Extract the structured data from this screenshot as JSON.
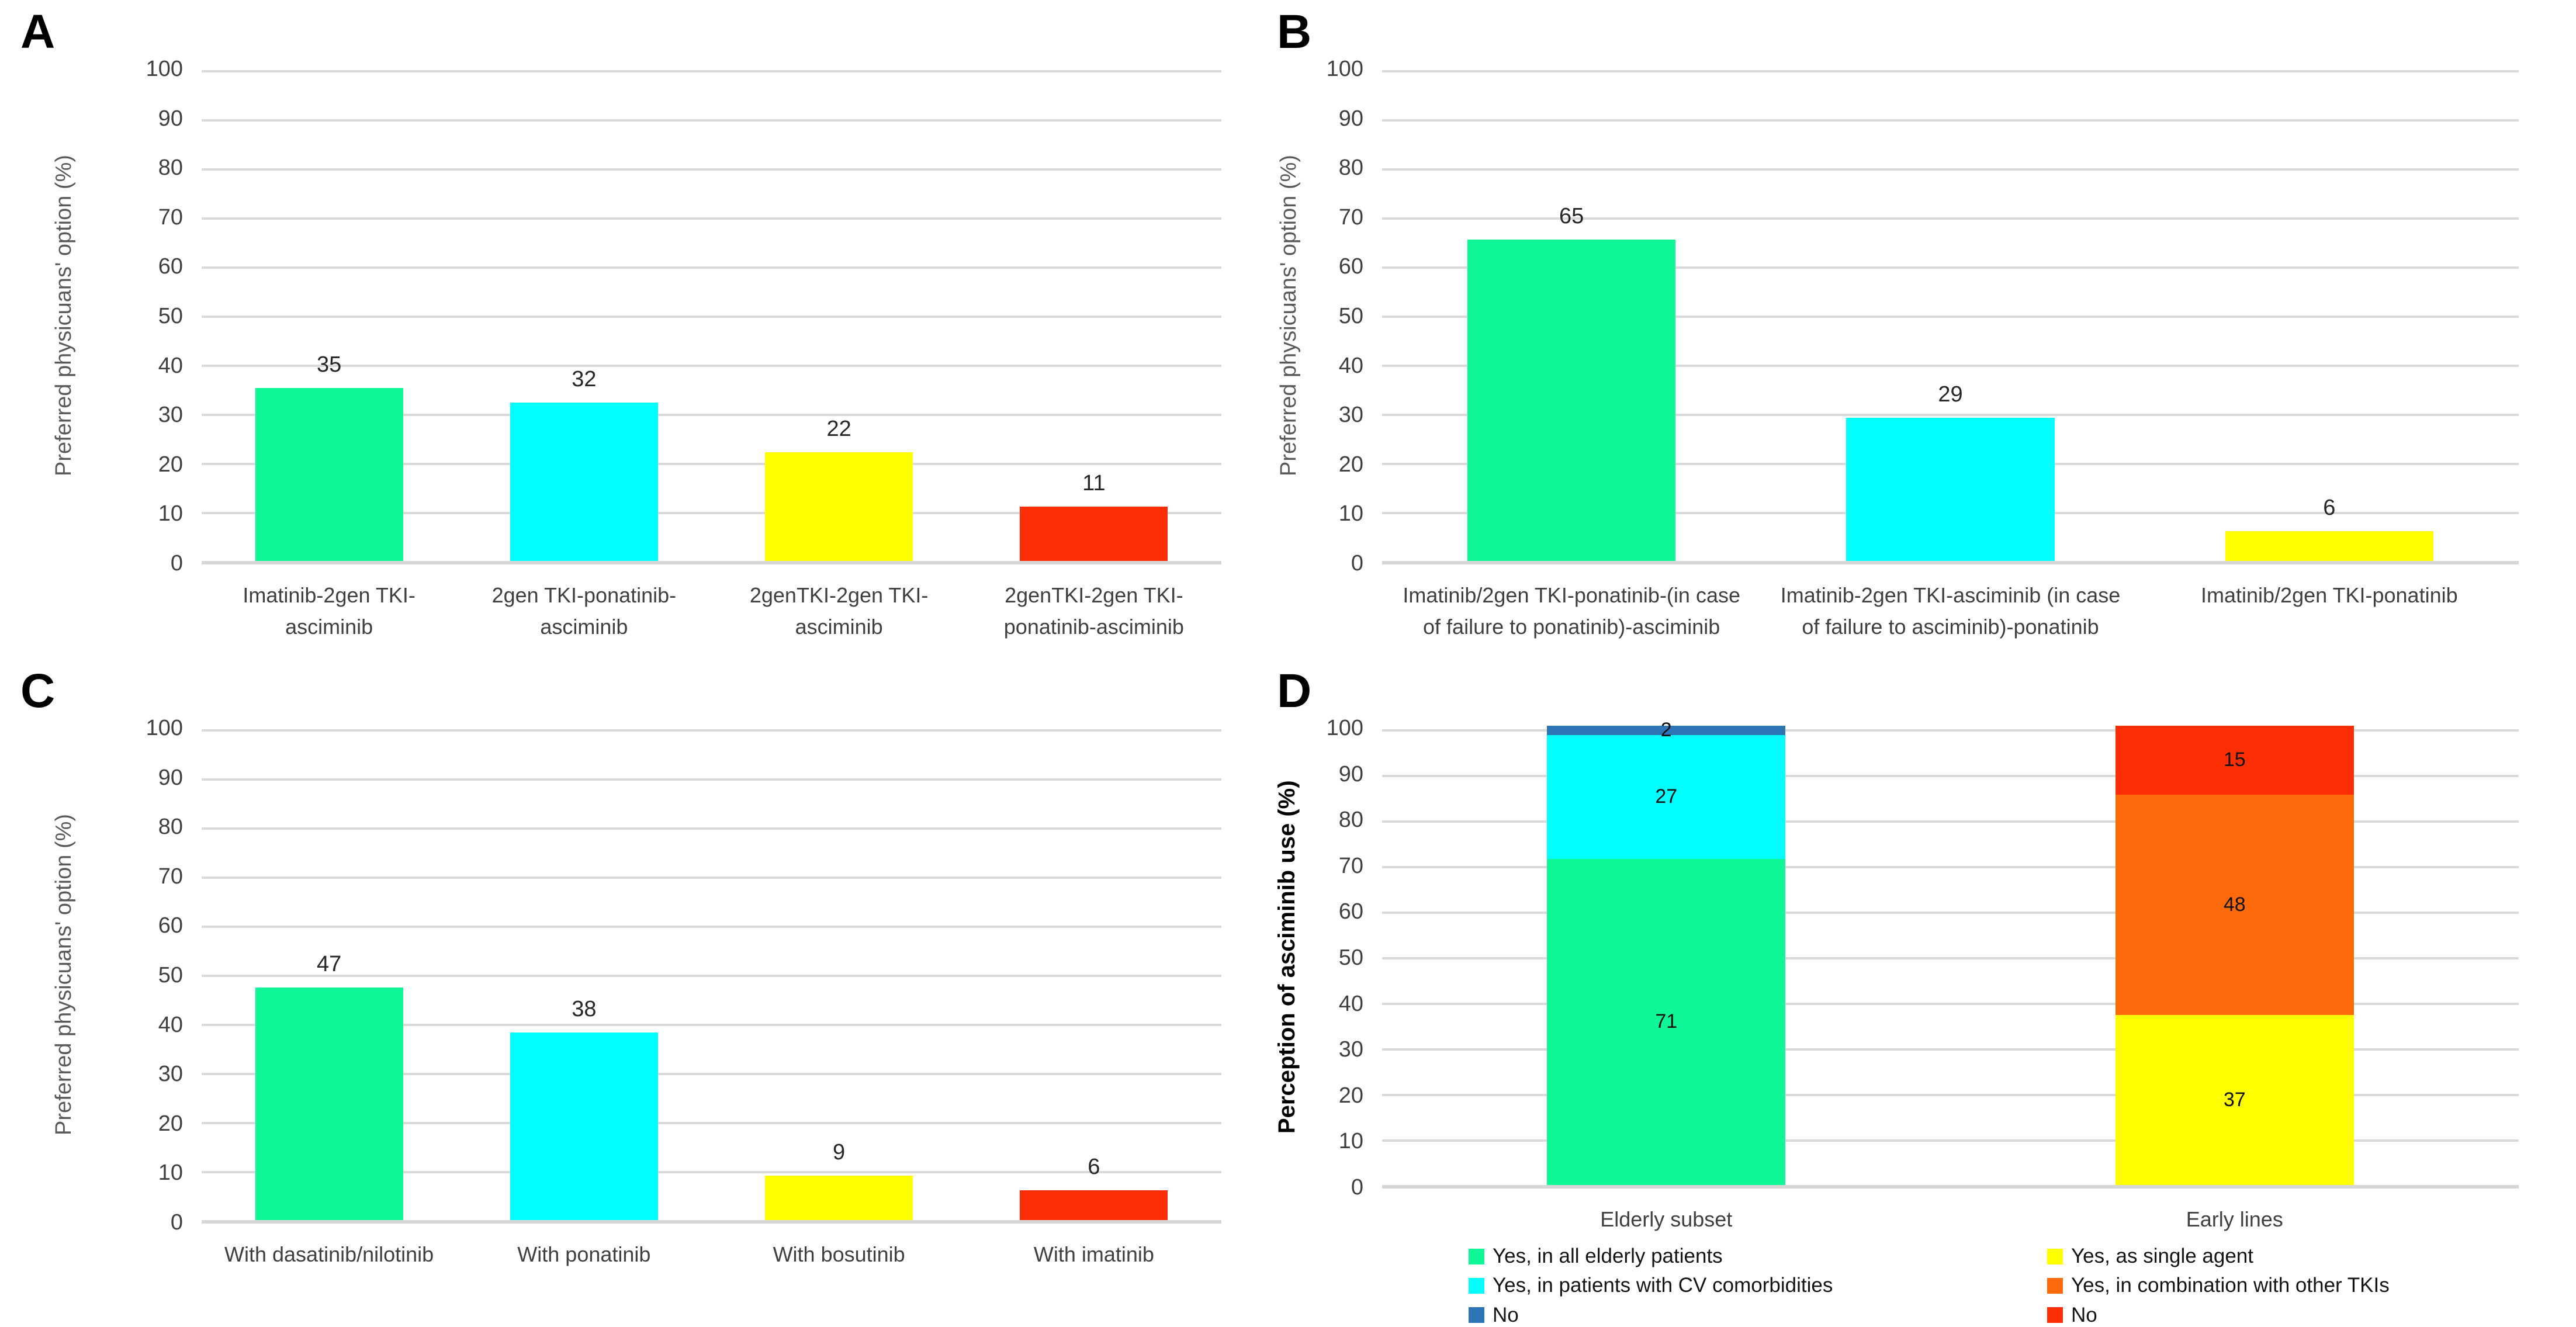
{
  "chart_data": [
    {
      "type": "bar",
      "panel_label": "A",
      "ylabel": "Preferred physicuans' option (%)",
      "ylim": [
        0,
        100
      ],
      "yticks": [
        0,
        10,
        20,
        30,
        40,
        50,
        60,
        70,
        80,
        90,
        100
      ],
      "grid": true,
      "categories": [
        "Imatinib-2gen TKI-asciminib",
        "2gen TKI-ponatinib-asciminib",
        "2genTKI-2gen TKI-asciminib",
        "2genTKI-2gen TKI-ponatinib-asciminib"
      ],
      "values": [
        35,
        32,
        22,
        11
      ],
      "colors": [
        "#10f797",
        "#00ffff",
        "#ffff00",
        "#fb2e05"
      ]
    },
    {
      "type": "bar",
      "panel_label": "B",
      "ylabel": "Preferred physicuans' option (%)",
      "ylim": [
        0,
        100
      ],
      "yticks": [
        0,
        10,
        20,
        30,
        40,
        50,
        60,
        70,
        80,
        90,
        100
      ],
      "grid": true,
      "categories": [
        "Imatinib/2gen TKI-ponatinib-(in case of failure to ponatinib)-asciminib",
        "Imatinib-2gen TKI-asciminib (in case of failure to asciminib)-ponatinib",
        "Imatinib/2gen TKI-ponatinib"
      ],
      "values": [
        65,
        29,
        6
      ],
      "colors": [
        "#10f797",
        "#00ffff",
        "#ffff00"
      ]
    },
    {
      "type": "bar",
      "panel_label": "C",
      "ylabel": "Preferred physicuans' option (%)",
      "ylim": [
        0,
        100
      ],
      "yticks": [
        0,
        10,
        20,
        30,
        40,
        50,
        60,
        70,
        80,
        90,
        100
      ],
      "grid": true,
      "categories": [
        "With dasatinib/nilotinib",
        "With ponatinib",
        "With bosutinib",
        "With imatinib"
      ],
      "values": [
        47,
        38,
        9,
        6
      ],
      "colors": [
        "#10f797",
        "#00ffff",
        "#ffff00",
        "#fb2e05"
      ]
    },
    {
      "type": "stacked-bar",
      "panel_label": "D",
      "ylabel": "Perception of asciminib use (%)",
      "ylim": [
        0,
        100
      ],
      "yticks": [
        0,
        10,
        20,
        30,
        40,
        50,
        60,
        70,
        80,
        90,
        100
      ],
      "grid": true,
      "categories": [
        "Elderly subset",
        "Early lines"
      ],
      "stacks": [
        {
          "category": "Elderly subset",
          "segments": [
            {
              "label": "Yes, in all elderly patients",
              "value": 71,
              "color": "#10f797"
            },
            {
              "label": "Yes, in patients with CV comorbidities",
              "value": 27,
              "color": "#00ffff"
            },
            {
              "label": "No",
              "value": 2,
              "color": "#2e75b6"
            }
          ]
        },
        {
          "category": "Early lines",
          "segments": [
            {
              "label": "Yes, as single agent",
              "value": 37,
              "color": "#ffff00"
            },
            {
              "label": "Yes, in combination with other TKIs",
              "value": 48,
              "color": "#fc6a0b"
            },
            {
              "label": "No",
              "value": 15,
              "color": "#fb2e05"
            }
          ]
        }
      ],
      "legend": {
        "position": "bottom",
        "columns": [
          [
            {
              "label": "Yes, in all elderly patients",
              "color": "#10f797"
            },
            {
              "label": "Yes, in patients with CV comorbidities",
              "color": "#00ffff"
            },
            {
              "label": "No",
              "color": "#2e75b6"
            }
          ],
          [
            {
              "label": "Yes, as single agent",
              "color": "#ffff00"
            },
            {
              "label": "Yes, in combination with other TKIs",
              "color": "#fc6a0b"
            },
            {
              "label": "No",
              "color": "#fb2e05"
            }
          ]
        ]
      }
    }
  ]
}
